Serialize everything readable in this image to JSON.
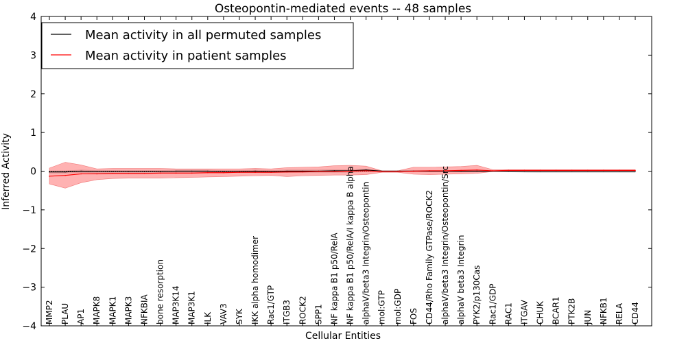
{
  "chart_data": {
    "type": "line",
    "title": "Osteopontin-mediated events -- 48 samples",
    "xlabel": "Cellular Entities",
    "ylabel": "Inferred Activity",
    "ylim": [
      -4,
      4
    ],
    "yticks": [
      -4,
      -3,
      -2,
      -1,
      0,
      1,
      2,
      3,
      4
    ],
    "ytick_labels": [
      "−4",
      "−3",
      "−2",
      "−1",
      "0",
      "1",
      "2",
      "3",
      "4"
    ],
    "legend_position": "top-left",
    "categories": [
      "MMP2",
      "PLAU",
      "AP1",
      "MAPK8",
      "MAPK1",
      "MAPK3",
      "NFKBIA",
      "bone resorption",
      "MAP3K14",
      "MAP3K1",
      "ILK",
      "VAV3",
      "SYK",
      "IKK alpha homodimer",
      "Rac1/GTP",
      "ITGB3",
      "ROCK2",
      "SPP1",
      "NF kappa B1 p50/RelA",
      "NF kappa B1 p50/RelA/I kappa B alpha",
      "alphaV/beta3 Integrin/Osteopontin",
      "mol:GTP",
      "mol:GDP",
      "FOS",
      "CD44/Rho Family GTPase/ROCK2",
      "alphaV/beta3 Integrin/Osteopontin/Src",
      "alphaV beta3 Integrin",
      "PYK2/p130Cas",
      "Rac1/GDP",
      "RAC1",
      "ITGAV",
      "CHUK",
      "BCAR1",
      "PTK2B",
      "JUN",
      "NFKB1",
      "RELA",
      "CD44"
    ],
    "series": [
      {
        "name": "Mean activity in all permuted samples",
        "color": "#000000",
        "values": [
          -0.02,
          -0.02,
          0.0,
          -0.01,
          -0.01,
          -0.01,
          -0.01,
          -0.01,
          0.0,
          0.0,
          0.0,
          -0.01,
          -0.01,
          0.0,
          -0.01,
          0.0,
          0.0,
          0.0,
          0.01,
          0.01,
          0.03,
          0.0,
          0.0,
          0.0,
          0.0,
          0.0,
          0.0,
          0.0,
          0.0,
          0.0,
          0.0,
          0.0,
          0.0,
          0.0,
          0.0,
          0.0,
          0.0,
          0.0
        ],
        "band_lower": [
          -0.05,
          -0.05,
          -0.04,
          -0.05,
          -0.05,
          -0.05,
          -0.05,
          -0.05,
          -0.04,
          -0.04,
          -0.04,
          -0.04,
          -0.04,
          -0.04,
          -0.04,
          -0.04,
          -0.03,
          -0.03,
          -0.03,
          -0.03,
          -0.02,
          -0.01,
          -0.01,
          -0.02,
          -0.02,
          -0.02,
          -0.02,
          -0.02,
          -0.01,
          -0.02,
          -0.03,
          -0.04,
          -0.04,
          -0.04,
          -0.04,
          -0.04,
          -0.04,
          -0.04
        ],
        "band_upper": [
          0.01,
          0.01,
          0.03,
          0.02,
          0.02,
          0.02,
          0.02,
          0.02,
          0.03,
          0.03,
          0.03,
          0.02,
          0.02,
          0.03,
          0.02,
          0.03,
          0.03,
          0.03,
          0.04,
          0.04,
          0.06,
          0.01,
          0.01,
          0.02,
          0.02,
          0.02,
          0.02,
          0.02,
          0.01,
          0.02,
          0.02,
          0.02,
          0.02,
          0.02,
          0.02,
          0.02,
          0.02,
          0.02
        ]
      },
      {
        "name": "Mean activity in patient samples",
        "color": "#ff0000",
        "values": [
          -0.13,
          -0.11,
          -0.07,
          -0.07,
          -0.06,
          -0.06,
          -0.06,
          -0.05,
          -0.05,
          -0.05,
          -0.04,
          -0.04,
          -0.03,
          -0.03,
          -0.03,
          -0.02,
          -0.02,
          -0.01,
          -0.01,
          0.0,
          0.01,
          -0.01,
          -0.01,
          0.0,
          0.01,
          0.01,
          0.02,
          0.03,
          0.01,
          0.02,
          0.02,
          0.02,
          0.02,
          0.02,
          0.02,
          0.02,
          0.02,
          0.02
        ],
        "band_lower": [
          -0.33,
          -0.44,
          -0.3,
          -0.22,
          -0.19,
          -0.18,
          -0.18,
          -0.18,
          -0.17,
          -0.16,
          -0.15,
          -0.14,
          -0.13,
          -0.12,
          -0.11,
          -0.14,
          -0.12,
          -0.11,
          -0.1,
          -0.1,
          -0.09,
          -0.03,
          -0.03,
          -0.08,
          -0.09,
          -0.08,
          -0.07,
          -0.06,
          -0.01,
          -0.01,
          -0.01,
          -0.01,
          -0.01,
          -0.01,
          -0.01,
          -0.01,
          -0.01,
          -0.01
        ],
        "band_upper": [
          0.08,
          0.23,
          0.16,
          0.06,
          0.07,
          0.07,
          0.07,
          0.07,
          0.06,
          0.06,
          0.06,
          0.06,
          0.06,
          0.07,
          0.06,
          0.09,
          0.1,
          0.11,
          0.14,
          0.15,
          0.13,
          0.01,
          0.01,
          0.1,
          0.1,
          0.11,
          0.12,
          0.15,
          0.04,
          0.04,
          0.04,
          0.04,
          0.04,
          0.04,
          0.04,
          0.04,
          0.04,
          0.04
        ]
      }
    ],
    "reference_line": {
      "y": 0,
      "style": "dotted",
      "color": "#000000"
    }
  }
}
